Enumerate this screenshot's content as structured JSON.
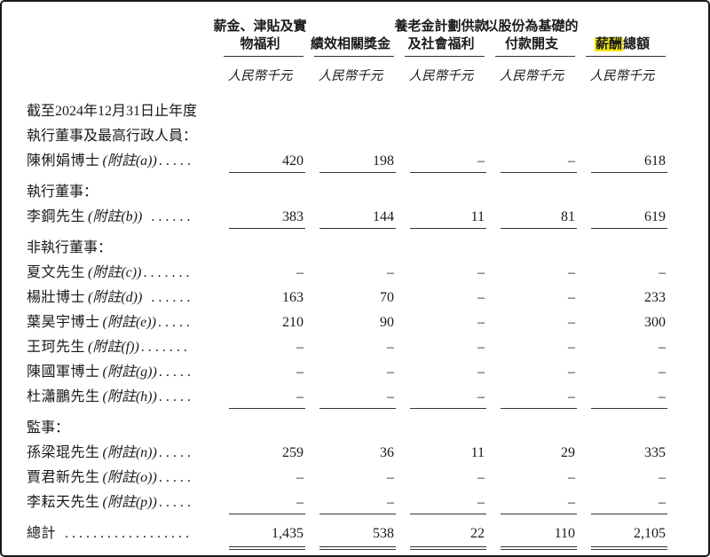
{
  "colors": {
    "highlight_yellow": "#f5e912",
    "rule_color": "#333333",
    "text_color": "#1a1a1a"
  },
  "table": {
    "columns": [
      {
        "header_lines": [
          "薪金、津貼及實",
          "物福利"
        ],
        "unit": "人民幣千元"
      },
      {
        "header_lines": [
          "績效相關獎金"
        ],
        "unit": "人民幣千元"
      },
      {
        "header_lines": [
          "養老金計劃供款",
          "及社會福利"
        ],
        "unit": "人民幣千元"
      },
      {
        "header_lines": [
          "以股份為基礎的",
          "付款開支"
        ],
        "unit": "人民幣千元"
      },
      {
        "header_lines": [
          "薪酬總額"
        ],
        "highlight": "薪酬",
        "rest": "總額",
        "unit": "人民幣千元"
      }
    ],
    "rows": [
      {
        "type": "section",
        "label": "截至2024年12月31日止年度"
      },
      {
        "type": "section",
        "label": "執行董事及最高行政人員："
      },
      {
        "type": "data",
        "name": "陳俐娟博士",
        "note": "(附註(a))",
        "dots": ".....",
        "values": [
          "420",
          "198",
          "–",
          "–",
          "618"
        ],
        "underline": true
      },
      {
        "type": "section",
        "label": "執行董事："
      },
      {
        "type": "data",
        "name": "李鋼先生",
        "note": "(附註(b))",
        "dots": " ......",
        "values": [
          "383",
          "144",
          "11",
          "81",
          "619"
        ],
        "underline": true
      },
      {
        "type": "section",
        "label": "非執行董事："
      },
      {
        "type": "data",
        "name": "夏文先生",
        "note": "(附註(c))",
        "dots": ".......",
        "values": [
          "–",
          "–",
          "–",
          "–",
          "–"
        ],
        "underline": false
      },
      {
        "type": "data",
        "name": "楊壯博士",
        "note": "(附註(d))",
        "dots": " ......",
        "values": [
          "163",
          "70",
          "–",
          "–",
          "233"
        ],
        "underline": false
      },
      {
        "type": "data",
        "name": "葉昊宇博士",
        "note": "(附註(e))",
        "dots": ".....",
        "values": [
          "210",
          "90",
          "–",
          "–",
          "300"
        ],
        "underline": false
      },
      {
        "type": "data",
        "name": "王珂先生",
        "note": "(附註(f))",
        "dots": ".......",
        "values": [
          "–",
          "–",
          "–",
          "–",
          "–"
        ],
        "underline": false
      },
      {
        "type": "data",
        "name": "陳國軍博士",
        "note": "(附註(g))",
        "dots": ".....",
        "values": [
          "–",
          "–",
          "–",
          "–",
          "–"
        ],
        "underline": false
      },
      {
        "type": "data",
        "name": "杜瀟鵬先生",
        "note": "(附註(h))",
        "dots": ".....",
        "values": [
          "–",
          "–",
          "–",
          "–",
          "–"
        ],
        "underline": true
      },
      {
        "type": "section",
        "label": "監事："
      },
      {
        "type": "data",
        "name": "孫梁琨先生",
        "note": "(附註(n))",
        "dots": ".....",
        "values": [
          "259",
          "36",
          "11",
          "29",
          "335"
        ],
        "underline": false
      },
      {
        "type": "data",
        "name": "賈君新先生",
        "note": "(附註(o))",
        "dots": ".....",
        "values": [
          "–",
          "–",
          "–",
          "–",
          "–"
        ],
        "underline": false
      },
      {
        "type": "data",
        "name": "李耘天先生",
        "note": "(附註(p))",
        "dots": ".....",
        "values": [
          "–",
          "–",
          "–",
          "–",
          "–"
        ],
        "underline": true
      },
      {
        "type": "total",
        "name": "總計",
        "dots": " ..................",
        "values": [
          "1,435",
          "538",
          "22",
          "110",
          "2,105"
        ],
        "underline": false
      }
    ]
  }
}
